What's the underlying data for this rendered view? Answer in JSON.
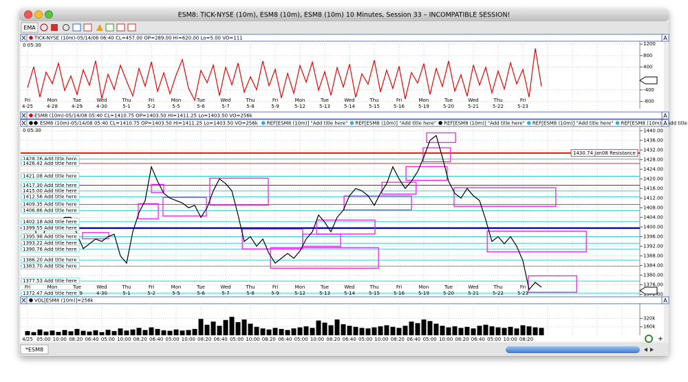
{
  "window": {
    "title": "ESM8: TICK-NYSE (10m), ESM8 (10m), ESM8 (10m) 10 Minutes, Session 33 – INCOMPATIBLE SESSION!",
    "toolbar_button": "EMA",
    "tab": "*ESM8",
    "pane_button": "A",
    "zoom_button": "+"
  },
  "days": {
    "weekdays": [
      "Fri",
      "Mon",
      "Tue",
      "Wed",
      "Thu",
      "Fri",
      "Mon",
      "Tue",
      "Wed",
      "Thu",
      "Fri",
      "Mon",
      "Tue",
      "Wed",
      "Thu",
      "Fri",
      "Mon",
      "Tue",
      "Wed",
      "Thu",
      "Fri"
    ],
    "dates": [
      "4-25",
      "4-28",
      "4-29",
      "4-30",
      "5-1",
      "5-2",
      "5-5",
      "5-6",
      "5-7",
      "5-8",
      "5-9",
      "5-12",
      "5-13",
      "5-14",
      "5-15",
      "5-16",
      "5-19",
      "5-20",
      "5-21",
      "5-22",
      "5-23"
    ]
  },
  "time_axis": [
    "4/25",
    "05:00",
    "10:00",
    "08:20",
    "06:40",
    "05:00",
    "10:00",
    "08:20",
    "06:40",
    "05:00",
    "10:00",
    "08:20",
    "06:40",
    "05:00",
    "10:00",
    "08:20",
    "06:40",
    "05:00",
    "10:00",
    "08:20",
    "06:40",
    "05:00",
    "10:00",
    "08:20",
    "06:40",
    "05:00",
    "10:00",
    "08:20",
    "06:40",
    "05:00",
    "10:00",
    "08:20"
  ],
  "tick_pane": {
    "type": "line",
    "header": "TICK-NYSE (10m)-05/14/08 06:40 CL=457.00 OP=289.00 Hi=620.00 Lo=5.00 VO=111",
    "corner": "0  05:30",
    "color": "#ee0000",
    "ylim": [
      -1050,
      1300
    ],
    "yticks": [
      1200,
      800,
      400,
      -400,
      -800
    ],
    "values": [
      -320,
      410,
      -650,
      220,
      -180,
      530,
      -420,
      90,
      -560,
      300,
      -240,
      620,
      -700,
      150,
      -380,
      460,
      -90,
      -610,
      350,
      -270,
      580,
      -450,
      200,
      -530,
      120,
      660,
      -340,
      -760,
      280,
      -150,
      470,
      -600,
      390,
      -220,
      540,
      -480,
      60,
      -390,
      610,
      -250,
      320,
      -680,
      180,
      -520,
      450,
      -130,
      570,
      -410,
      240,
      -590,
      380,
      -300,
      500,
      -660,
      160,
      -200,
      640,
      -470,
      290,
      -350,
      430,
      -720,
      210,
      -160,
      520,
      -560,
      350,
      -280,
      610,
      -440,
      130,
      -620,
      470,
      -230,
      390,
      -500,
      260,
      -370,
      550,
      -190,
      320,
      -650,
      1050,
      -280
    ]
  },
  "price_pane": {
    "type": "line",
    "header": "ESM8 (10m)-05/14/08 05:40 CL=1410.75 OP=1403.50 Hi=1411.25 Lo=1403.50 VO=256k",
    "header2": "ESM8 (10m)-05/14/08 05:40 CL=1410.75 OP=1403.50 Hi=1411.25 Lo=1403.50 VO=256k",
    "refs": [
      "REF[ESM8 (10m)] \"Add title here\"",
      "REF[ESM8 (10m)] \"Add title here\"",
      "REF[ESM8 (10m)] \"Add title here\"",
      "REF[ESM8 (10m)] \"Add title here\"",
      "REF[ESM8 (10m)] \"Add title here\"",
      "REF[ESM8 (10m)] \"Add title here\""
    ],
    "corner": "0  05:30",
    "color": "#000000",
    "box_color": "#ee22ee",
    "ylim": [
      1371,
      1441.5
    ],
    "yticks": [
      {
        "value": 1440,
        "label": "1440.00"
      },
      {
        "value": 1436,
        "label": "1436.00"
      },
      {
        "value": 1432,
        "label": "1432.00"
      },
      {
        "value": 1428,
        "label": "1428.00"
      },
      {
        "value": 1424,
        "label": "1424.00"
      },
      {
        "value": 1420,
        "label": "1420.00"
      },
      {
        "value": 1416,
        "label": "1416.00"
      },
      {
        "value": 1412,
        "label": "1412.00"
      },
      {
        "value": 1408,
        "label": "1408.00"
      },
      {
        "value": 1404,
        "label": "1404.00"
      },
      {
        "value": 1400,
        "label": "1400.00"
      },
      {
        "value": 1396,
        "label": "1396.00"
      },
      {
        "value": 1392,
        "label": "1392.00"
      },
      {
        "value": 1388,
        "label": "1388.00"
      },
      {
        "value": 1384,
        "label": "1384.00"
      },
      {
        "value": 1380,
        "label": "1380.00"
      },
      {
        "value": 1376,
        "label": "1376.00"
      },
      {
        "value": 1372,
        "label": "1372.00"
      }
    ],
    "values": [
      1401,
      1402,
      1390,
      1401,
      1403,
      1402,
      1404,
      1404,
      1397,
      1391,
      1393,
      1395,
      1394,
      1396,
      1397,
      1388,
      1385,
      1398,
      1406,
      1411,
      1425,
      1419,
      1414,
      1412,
      1411,
      1410,
      1408,
      1409,
      1404,
      1408,
      1415,
      1420,
      1418,
      1415,
      1405,
      1394,
      1396,
      1392,
      1395,
      1389,
      1385,
      1387,
      1389,
      1387,
      1390,
      1395,
      1398,
      1405,
      1402,
      1398,
      1404,
      1407,
      1413,
      1416,
      1415,
      1413,
      1409,
      1414,
      1418,
      1425,
      1420,
      1416,
      1419,
      1423,
      1429,
      1436,
      1438,
      1429,
      1419,
      1414,
      1412,
      1416,
      1413,
      1411,
      1403,
      1394,
      1396,
      1393,
      1396,
      1392,
      1386,
      1374,
      1377,
      1375
    ],
    "resistance": {
      "value": 1430.74,
      "label": "1430.74 Jan08 Resistance",
      "color": "#dd1111"
    },
    "levels": [
      {
        "value": 1428.26,
        "label": "1428.26 Add title here",
        "color": "#33cccc"
      },
      {
        "value": 1426.42,
        "label": "1426.42 Add title here",
        "color": "#cc3333"
      },
      {
        "value": 1421.08,
        "label": "1421.08 Add title here",
        "color": "#33cccc"
      },
      {
        "value": 1417.3,
        "label": "1417.30 Add title here",
        "color": "#333333"
      },
      {
        "value": 1415,
        "label": "1415.00 Add title here",
        "color": "#33cccc"
      },
      {
        "value": 1412.56,
        "label": "1412.56 Add title here",
        "color": "#33cccc"
      },
      {
        "value": 1409.35,
        "label": "1409.35 Add title here",
        "color": "#666666"
      },
      {
        "value": 1406.86,
        "label": "1406.86 Add title here",
        "color": "#33cccc"
      },
      {
        "value": 1402.18,
        "label": "1402.18 Add title here",
        "color": "#33cccc"
      },
      {
        "value": 1399.55,
        "label": "1399.55 Add title here",
        "color": "#0000aa",
        "thick": true
      },
      {
        "value": 1395.98,
        "label": "1395.98 Add title here",
        "color": "#33cccc"
      },
      {
        "value": 1393.22,
        "label": "1393.22 Add title here",
        "color": "#33cccc"
      },
      {
        "value": 1390.76,
        "label": "1390.76 Add title here",
        "color": "#33cccc"
      },
      {
        "value": 1386.2,
        "label": "1386.20 Add title here",
        "color": "#33cccc"
      },
      {
        "value": 1383.7,
        "label": "1383.70 Add title here",
        "color": "#33cccc"
      },
      {
        "value": 1377.53,
        "label": "1377.53 Add title here",
        "color": "#33cccc"
      },
      {
        "value": 1372.47,
        "label": "1372.47 Add title here",
        "color": "#33cccc"
      }
    ],
    "boxes": [
      {
        "start": 2.22,
        "end": 3.28,
        "high": 1397.7,
        "low": 1395.1
      },
      {
        "start": 4.47,
        "end": 5.28,
        "high": 1409.7,
        "low": 1403.4
      },
      {
        "start": 5.0,
        "end": 5.5,
        "high": 1417.7,
        "low": 1414.3
      },
      {
        "start": 5.47,
        "end": 7.22,
        "high": 1412.3,
        "low": 1404.6
      },
      {
        "start": 7.36,
        "end": 9.72,
        "high": 1420.3,
        "low": 1409.1
      },
      {
        "start": 8.67,
        "end": 11.11,
        "high": 1399.1,
        "low": 1390.9
      },
      {
        "start": 9.81,
        "end": 14.17,
        "high": 1391.4,
        "low": 1382.9
      },
      {
        "start": 11.11,
        "end": 12.64,
        "high": 1397,
        "low": 1392
      },
      {
        "start": 11.67,
        "end": 14.03,
        "high": 1402.9,
        "low": 1397.1
      },
      {
        "start": 12.78,
        "end": 15.5,
        "high": 1412.9,
        "low": 1407.1
      },
      {
        "start": 14.31,
        "end": 15.69,
        "high": 1418.6,
        "low": 1413.7
      },
      {
        "start": 15.28,
        "end": 16.94,
        "high": 1425.1,
        "low": 1419.4
      },
      {
        "start": 16.11,
        "end": 17.28,
        "high": 1439.1,
        "low": 1435.1
      },
      {
        "start": 15.97,
        "end": 17.08,
        "high": 1432.9,
        "low": 1427.1
      },
      {
        "start": 17.22,
        "end": 21.33,
        "high": 1416.3,
        "low": 1408.6
      },
      {
        "start": 18.56,
        "end": 22.56,
        "high": 1398.3,
        "low": 1389.7
      },
      {
        "start": 20.22,
        "end": 22.17,
        "high": 1379.7,
        "low": 1372.9
      }
    ]
  },
  "volume_pane": {
    "type": "bar",
    "header": "VOL[ESM8 (10m)]=256k",
    "color": "#000000",
    "ylim": [
      0,
      600000
    ],
    "yticks": [
      {
        "value": 320000,
        "label": "320k"
      },
      {
        "value": 160000,
        "label": "160k"
      }
    ],
    "values": [
      80000,
      60000,
      110000,
      70000,
      90000,
      65000,
      100000,
      75000,
      120000,
      85000,
      70000,
      95000,
      60000,
      105000,
      80000,
      130000,
      90000,
      110000,
      140000,
      100000,
      150000,
      120000,
      95000,
      85000,
      110000,
      90000,
      100000,
      120000,
      310000,
      200000,
      260000,
      180000,
      290000,
      350000,
      250000,
      300000,
      220000,
      160000,
      130000,
      110000,
      140000,
      120000,
      100000,
      130000,
      150000,
      170000,
      140000,
      280000,
      240000,
      190000,
      300000,
      210000,
      180000,
      160000,
      140000,
      130000,
      150000,
      170000,
      190000,
      160000,
      140000,
      180000,
      260000,
      230000,
      300000,
      270000,
      220000,
      180000,
      150000,
      170000,
      140000,
      160000,
      130000,
      180000,
      200000,
      170000,
      150000,
      140000,
      160000,
      130000,
      190000,
      170000,
      150000,
      140000
    ]
  }
}
